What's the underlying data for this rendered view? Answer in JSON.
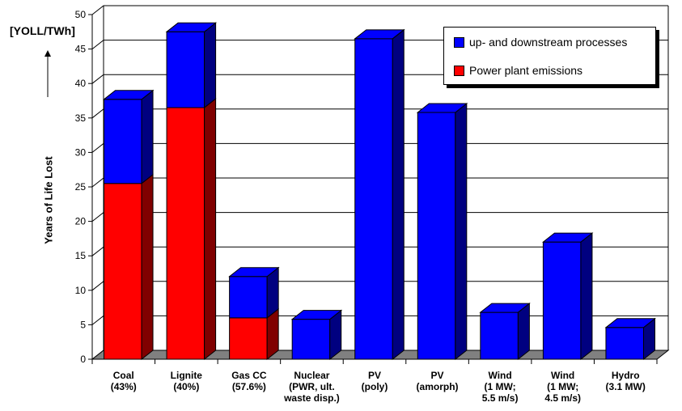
{
  "chart_data": {
    "type": "bar",
    "stacked": true,
    "three_d": true,
    "ylabel": "Years of Life Lost",
    "unit_label": "[YOLL/TWh]",
    "ylim": [
      0,
      50
    ],
    "yticks": [
      0,
      5,
      10,
      15,
      20,
      25,
      30,
      35,
      40,
      45,
      50
    ],
    "grid": true,
    "legend_position": "top-right",
    "categories": [
      [
        "Coal",
        "(43%)"
      ],
      [
        "Lignite",
        "(40%)"
      ],
      [
        "Gas CC",
        "(57.6%)"
      ],
      [
        "Nuclear",
        "(PWR, ult.",
        "waste disp.)"
      ],
      [
        "PV",
        "(poly)"
      ],
      [
        "PV",
        "(amorph)"
      ],
      [
        "Wind",
        "(1 MW;",
        "5.5 m/s)"
      ],
      [
        "Wind",
        "(1 MW;",
        "4.5 m/s)"
      ],
      [
        "Hydro",
        "(3.1 MW)"
      ]
    ],
    "series": [
      {
        "name": "Power plant emissions",
        "color": "#ff0000",
        "side_color": "#800000",
        "values": [
          25.5,
          36.5,
          6.0,
          0,
          0,
          0,
          0,
          0,
          0
        ]
      },
      {
        "name": "up- and downstream processes",
        "color": "#0000ff",
        "side_color": "#000080",
        "values": [
          12.2,
          11.0,
          6.0,
          5.8,
          46.5,
          35.8,
          6.8,
          17.0,
          4.6
        ]
      }
    ],
    "legend_order": [
      1,
      0
    ]
  }
}
